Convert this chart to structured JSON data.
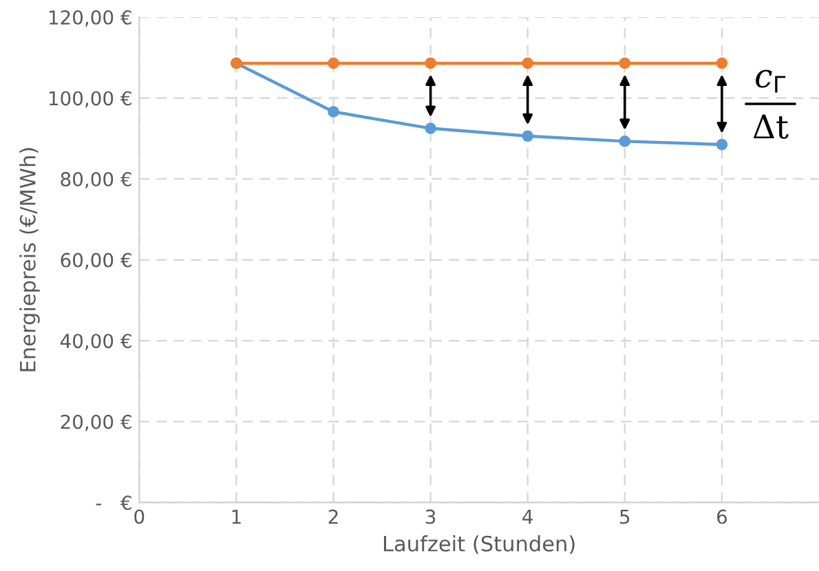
{
  "chart_data": {
    "type": "line",
    "xlabel": "Laufzeit (Stunden)",
    "ylabel": "Energiepreis (€/MWh)",
    "x": [
      1,
      2,
      3,
      4,
      5,
      6
    ],
    "series": [
      {
        "color": "#ed7d31",
        "values": [
          108.6,
          108.6,
          108.6,
          108.6,
          108.6,
          108.6
        ]
      },
      {
        "color": "#5b9bd5",
        "values": [
          108.6,
          96.6,
          92.5,
          90.6,
          89.3,
          88.5
        ]
      }
    ],
    "xlim": [
      0,
      7
    ],
    "xticks": [
      0,
      1,
      2,
      3,
      4,
      5,
      6
    ],
    "ylim": [
      0,
      120
    ],
    "yticks": [
      {
        "value": 0,
        "label": "-   €"
      },
      {
        "value": 20,
        "label": "20,00 €"
      },
      {
        "value": 40,
        "label": "40,00 €"
      },
      {
        "value": 60,
        "label": "60,00 €"
      },
      {
        "value": 80,
        "label": "80,00 €"
      },
      {
        "value": 100,
        "label": "100,00 €"
      },
      {
        "value": 120,
        "label": "120,00 €"
      }
    ],
    "annotations": [
      "c$_{Γ}$",
      "Δt"
    ],
    "grid": true,
    "marker": "circle",
    "line_style": "solid",
    "legend": false
  }
}
